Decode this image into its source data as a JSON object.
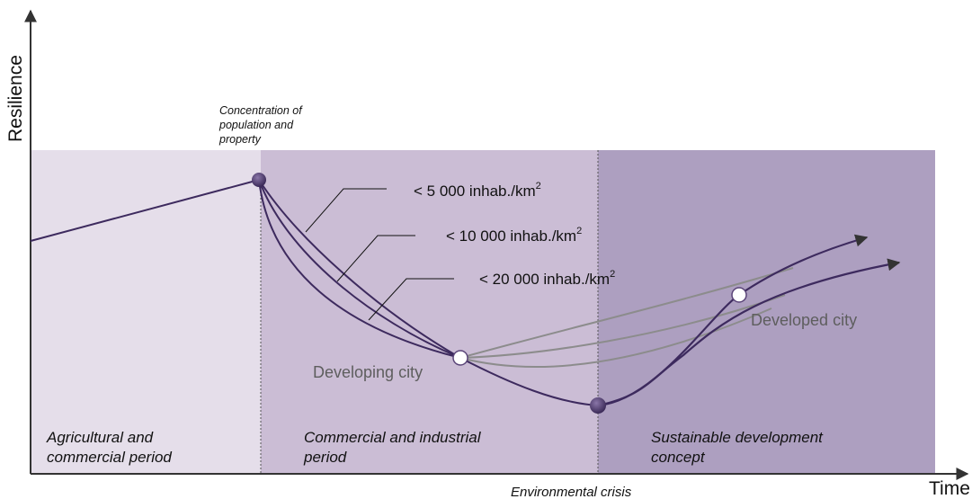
{
  "axes": {
    "y_label": "Resilience",
    "x_label": "Time",
    "crisis_label": "Environmental crisis"
  },
  "periods": [
    {
      "line1": "Agricultural and",
      "line2": "commercial period",
      "color": "#e5deea"
    },
    {
      "line1": "Commercial and industrial",
      "line2": "period",
      "color": "#cbbdd5"
    },
    {
      "line1": "Sustainable development",
      "line2": "concept",
      "color": "#ad9fc0"
    }
  ],
  "annotation": {
    "line1": "Concentration of",
    "line2": "population and",
    "line3": "property"
  },
  "density_labels": [
    {
      "text": "< 5 000 inhab./km",
      "sup": "2"
    },
    {
      "text": "< 10 000 inhab./km",
      "sup": "2"
    },
    {
      "text": "< 20 000 inhab./km",
      "sup": "2"
    }
  ],
  "city_labels": {
    "developing": "Developing city",
    "developed": "Developed city"
  },
  "colors": {
    "curve": "#3d2a5e",
    "gray_curve": "#8c8c8c",
    "marker_dark": "#5a4478",
    "marker_light": "#ffffff",
    "axis": "#333333"
  }
}
